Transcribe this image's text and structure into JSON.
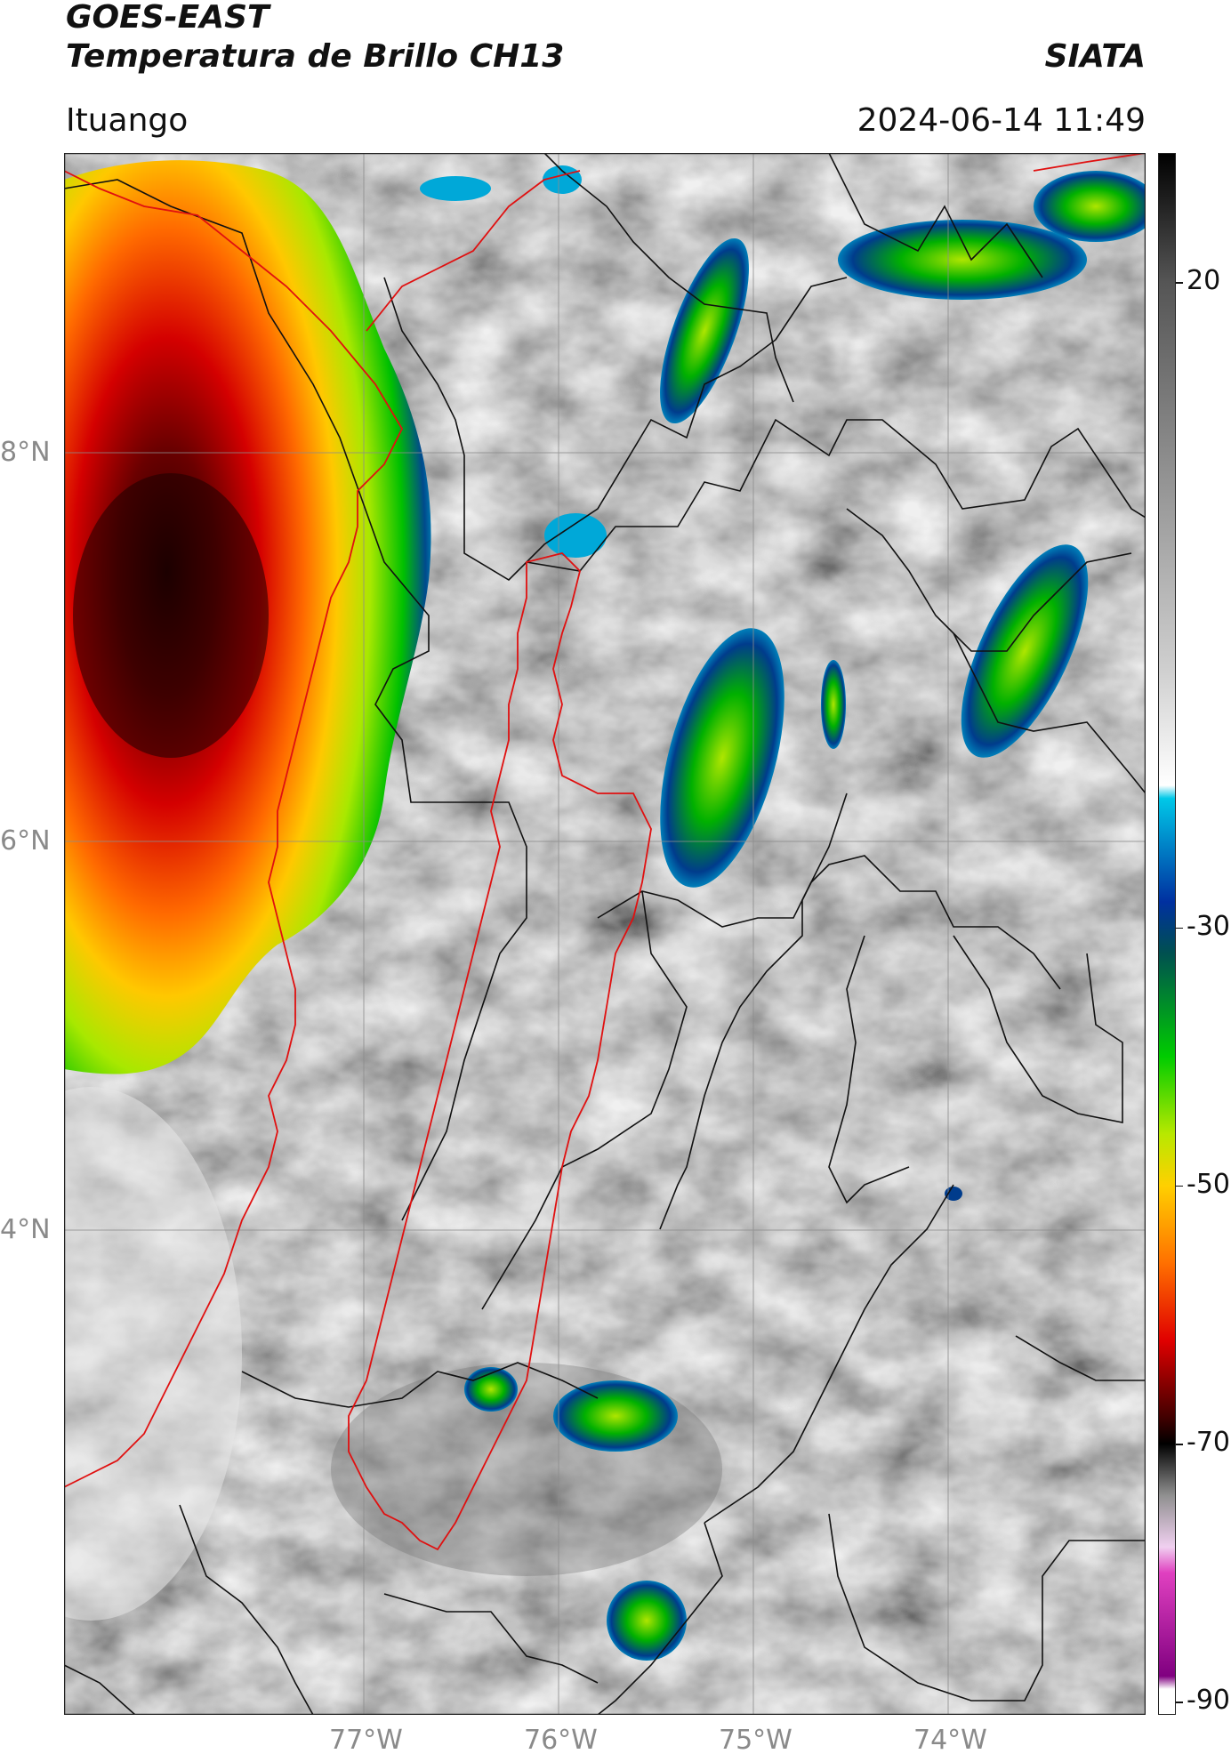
{
  "header": {
    "satellite": "GOES-EAST",
    "product": "Temperatura de Brillo CH13",
    "agency": "SIATA",
    "region": "Ituango",
    "datetime": "2024-06-14 11:49"
  },
  "map": {
    "lat_labels": [
      "8°N",
      "6°N",
      "4°N"
    ],
    "lon_labels": [
      "77°W",
      "76°W",
      "75°W",
      "74°W"
    ],
    "colors": {
      "cloud_grey": "#9a9a9a",
      "border_red": "#e01010",
      "border_black": "#111111"
    }
  },
  "colorbar": {
    "ticks": [
      "20",
      "-30",
      "-50",
      "-70",
      "-90"
    ],
    "stops": [
      {
        "v": 30,
        "c": "#000000"
      },
      {
        "v": 20,
        "c": "#555555"
      },
      {
        "v": -10,
        "c": "#cfcfcf"
      },
      {
        "v": -19,
        "c": "#ffffff"
      },
      {
        "v": -20,
        "c": "#00c8e8"
      },
      {
        "v": -28,
        "c": "#0030a0"
      },
      {
        "v": -32,
        "c": "#005050"
      },
      {
        "v": -40,
        "c": "#00cc00"
      },
      {
        "v": -46,
        "c": "#b8e800"
      },
      {
        "v": -50,
        "c": "#ffd000"
      },
      {
        "v": -56,
        "c": "#ff7000"
      },
      {
        "v": -62,
        "c": "#e00000"
      },
      {
        "v": -68,
        "c": "#400000"
      },
      {
        "v": -70,
        "c": "#000000"
      },
      {
        "v": -74,
        "c": "#909090"
      },
      {
        "v": -78,
        "c": "#f0d0f0"
      },
      {
        "v": -80,
        "c": "#e040c0"
      },
      {
        "v": -88,
        "c": "#800080"
      },
      {
        "v": -89,
        "c": "#ffffff"
      },
      {
        "v": -91,
        "c": "#ffffff"
      }
    ]
  }
}
